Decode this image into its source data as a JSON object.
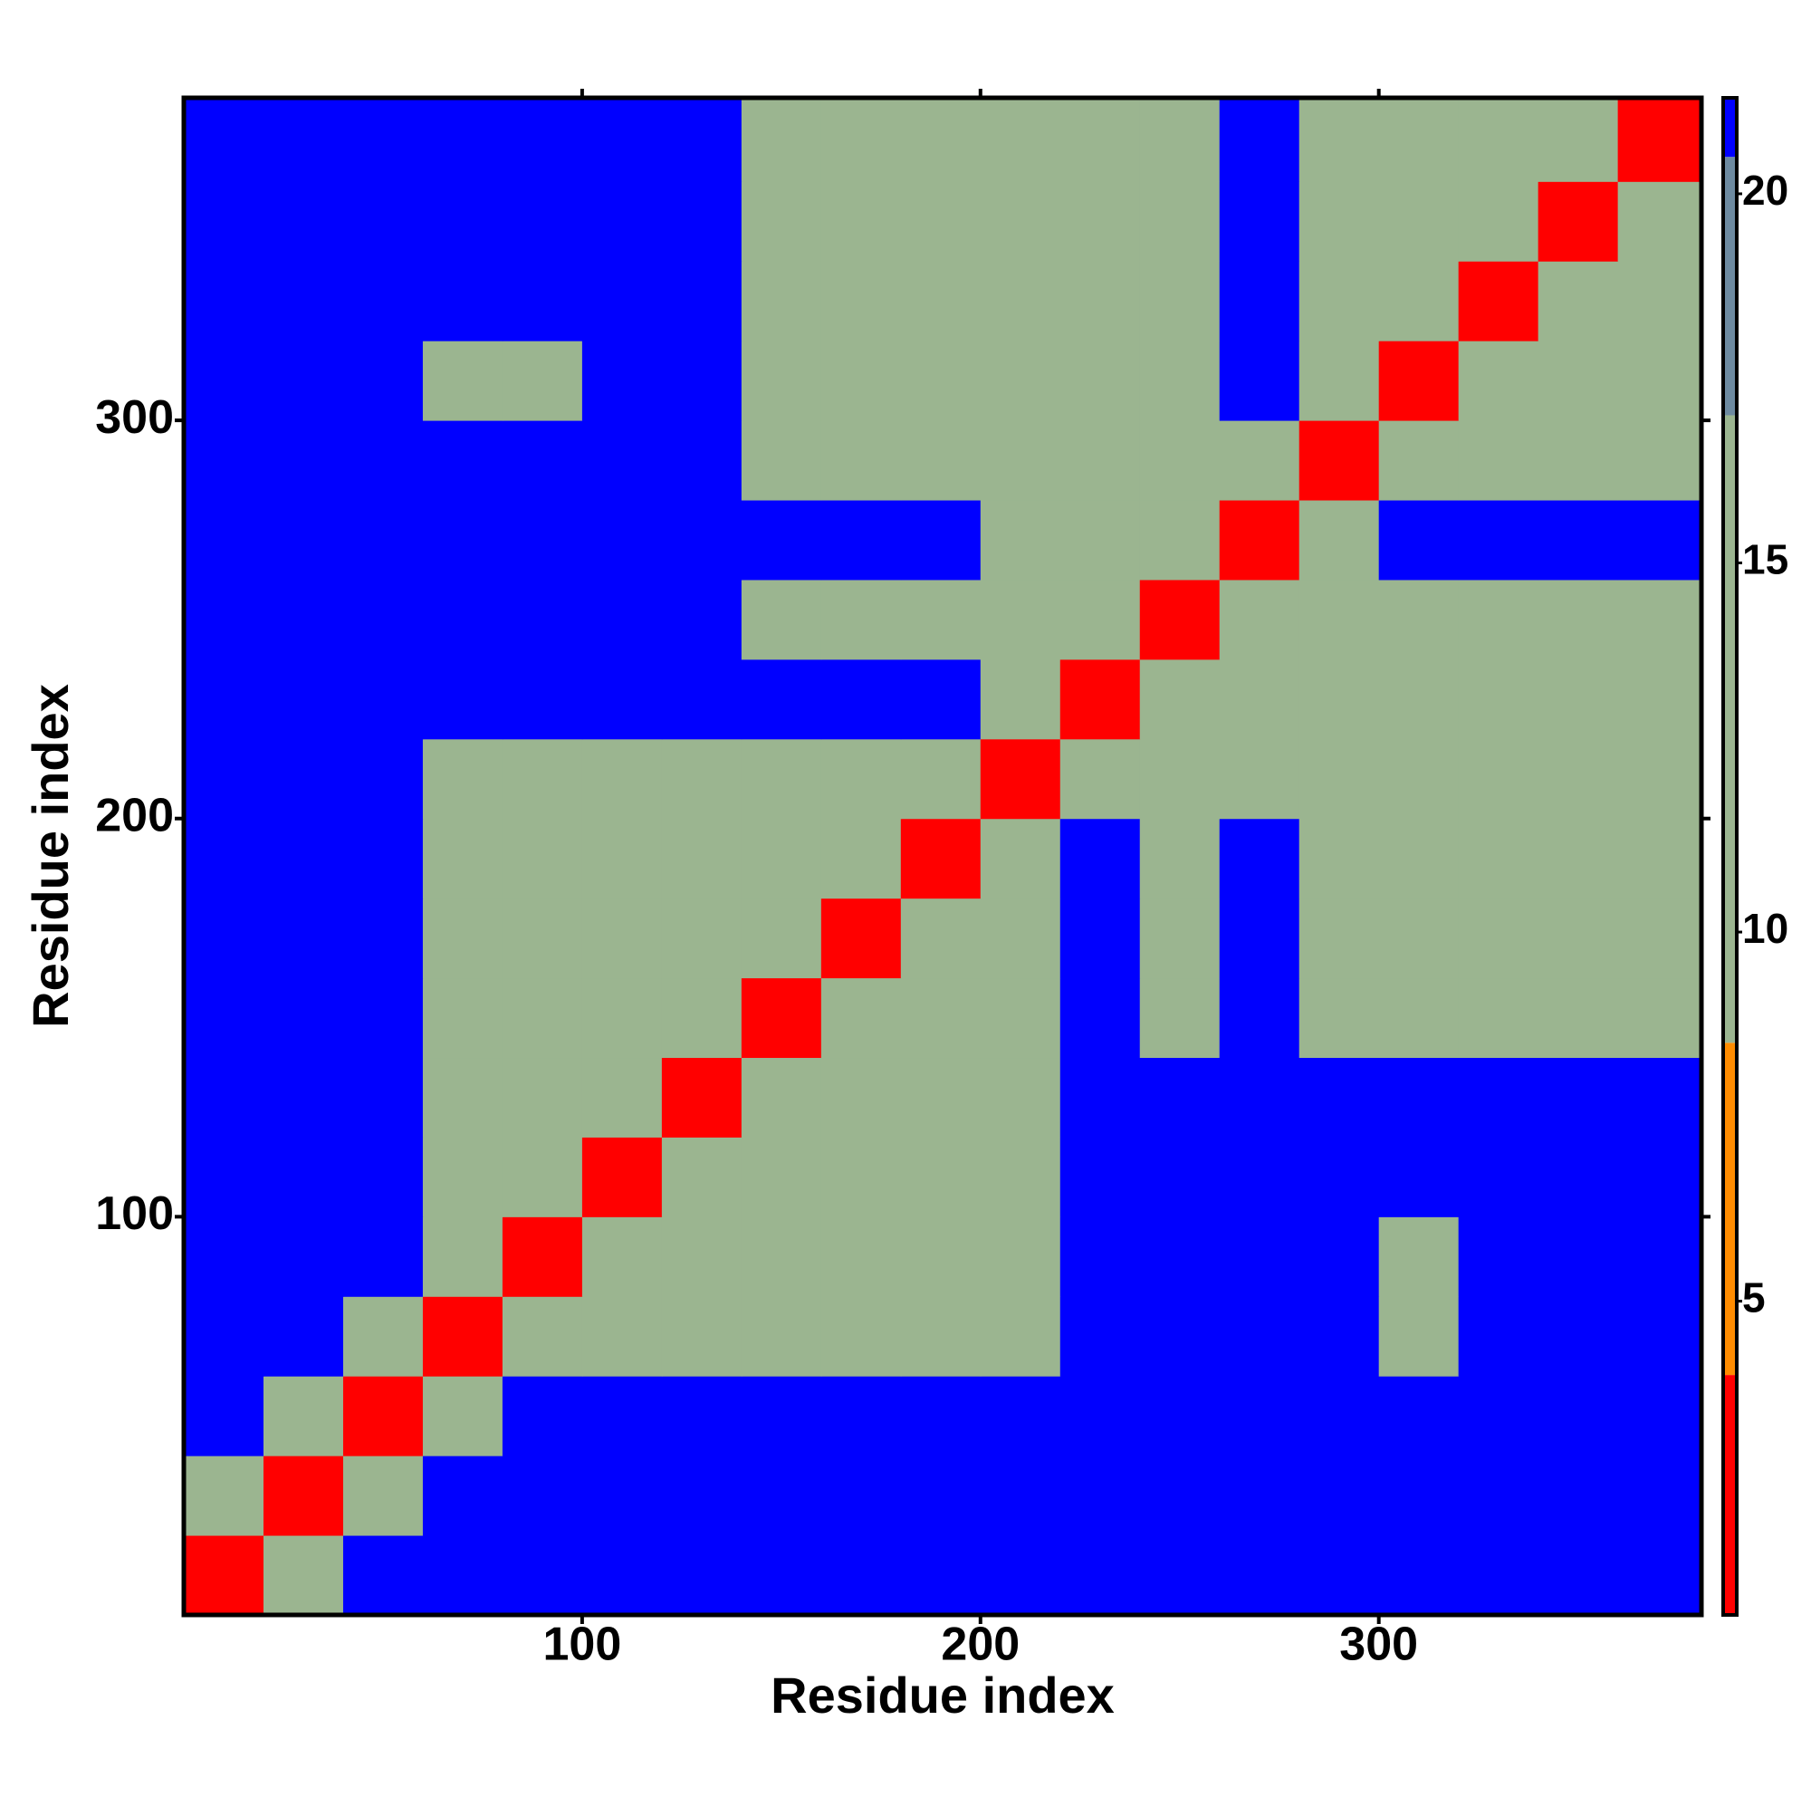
{
  "chart_data": {
    "type": "heatmap",
    "xlabel": "Residue index",
    "ylabel": "Residue index",
    "xlim": [
      0,
      381
    ],
    "ylim": [
      0,
      381
    ],
    "xticks": [
      100,
      200,
      300
    ],
    "yticks": [
      100,
      200,
      300
    ],
    "xbins": [
      0,
      20,
      40,
      60,
      80,
      100,
      120,
      140,
      160,
      180,
      200,
      220,
      240,
      260,
      280,
      300,
      320,
      340,
      360,
      381
    ],
    "ybins": [
      0,
      20,
      40,
      60,
      80,
      100,
      120,
      140,
      160,
      180,
      200,
      220,
      240,
      260,
      280,
      300,
      320,
      340,
      360,
      381
    ],
    "z": [
      [
        4,
        12,
        21,
        21,
        21,
        21,
        21,
        21,
        21,
        21,
        21,
        21,
        21,
        21,
        21,
        21,
        21,
        21,
        21
      ],
      [
        12,
        4,
        12,
        21,
        21,
        21,
        21,
        21,
        21,
        21,
        21,
        21,
        21,
        21,
        21,
        21,
        21,
        21,
        21
      ],
      [
        21,
        12,
        4,
        10,
        21,
        21,
        21,
        21,
        21,
        21,
        21,
        21,
        21,
        21,
        21,
        21,
        21,
        21,
        21
      ],
      [
        21,
        21,
        10,
        4,
        10,
        10,
        10,
        10,
        12,
        12,
        12,
        21,
        21,
        21,
        21,
        12,
        21,
        21,
        21
      ],
      [
        21,
        21,
        21,
        10,
        4,
        10,
        10,
        10,
        12,
        12,
        12,
        21,
        21,
        21,
        21,
        12,
        21,
        21,
        21
      ],
      [
        21,
        21,
        21,
        10,
        10,
        4,
        10,
        10,
        12,
        12,
        12,
        21,
        21,
        21,
        21,
        21,
        21,
        21,
        21
      ],
      [
        21,
        21,
        21,
        10,
        10,
        10,
        4,
        10,
        11,
        11,
        11,
        21,
        21,
        21,
        21,
        21,
        21,
        21,
        21
      ],
      [
        21,
        21,
        21,
        10,
        10,
        10,
        10,
        4,
        10,
        11,
        11,
        21,
        15,
        21,
        13,
        13,
        13,
        13,
        13
      ],
      [
        21,
        21,
        21,
        12,
        12,
        12,
        11,
        10,
        4,
        10,
        11,
        21,
        15,
        21,
        13,
        13,
        13,
        13,
        13
      ],
      [
        21,
        21,
        21,
        12,
        12,
        12,
        11,
        11,
        10,
        4,
        10,
        21,
        15,
        21,
        13,
        13,
        13,
        13,
        13
      ],
      [
        21,
        21,
        21,
        12,
        12,
        12,
        11,
        11,
        11,
        10,
        4,
        10,
        11,
        11,
        11,
        13,
        13,
        13,
        13
      ],
      [
        21,
        21,
        21,
        21,
        21,
        21,
        21,
        21,
        21,
        21,
        10,
        4,
        10,
        11,
        11,
        13,
        13,
        13,
        13
      ],
      [
        21,
        21,
        21,
        21,
        21,
        21,
        21,
        15,
        15,
        15,
        11,
        10,
        4,
        10,
        11,
        13,
        13,
        13,
        13
      ],
      [
        21,
        21,
        21,
        21,
        21,
        21,
        21,
        21,
        21,
        21,
        11,
        11,
        10,
        4,
        10,
        21,
        21,
        21,
        21
      ],
      [
        21,
        21,
        21,
        21,
        21,
        21,
        21,
        13,
        13,
        13,
        11,
        11,
        11,
        10,
        4,
        10,
        11,
        11,
        11
      ],
      [
        21,
        21,
        21,
        12,
        12,
        21,
        21,
        13,
        13,
        13,
        13,
        13,
        13,
        21,
        10,
        4,
        10,
        11,
        11
      ],
      [
        21,
        21,
        21,
        21,
        21,
        21,
        21,
        13,
        13,
        13,
        13,
        13,
        13,
        21,
        11,
        10,
        4,
        10,
        11
      ],
      [
        21,
        21,
        21,
        21,
        21,
        21,
        21,
        13,
        13,
        13,
        13,
        13,
        13,
        21,
        11,
        11,
        10,
        4,
        10
      ],
      [
        21,
        21,
        21,
        21,
        21,
        21,
        21,
        13,
        13,
        13,
        13,
        13,
        13,
        21,
        11,
        11,
        11,
        10,
        4
      ]
    ],
    "colorbar": {
      "lim": [
        0.75,
        21.3
      ],
      "ticks": [
        5,
        10,
        15,
        20
      ],
      "scale": [
        {
          "max": 4,
          "color": "#ff0000"
        },
        {
          "max": 8.5,
          "color": "#ff8c00"
        },
        {
          "max": 17,
          "color": "#9bb590"
        },
        {
          "max": 20.5,
          "color": "#6d8aa0"
        },
        {
          "max": 21.3,
          "color": "#0000ff"
        }
      ]
    }
  }
}
